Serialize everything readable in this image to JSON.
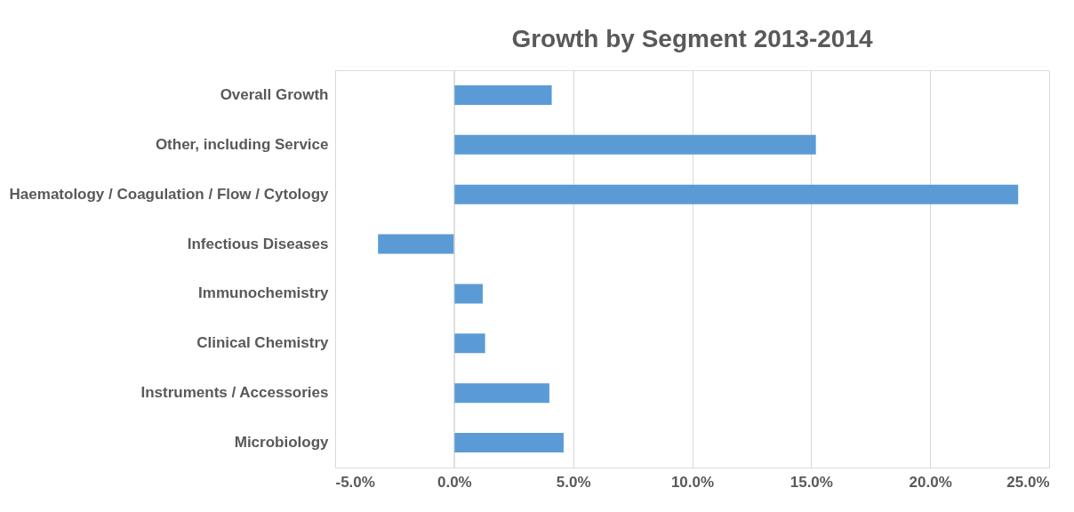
{
  "chart_data": {
    "type": "bar",
    "orientation": "horizontal",
    "title": "Growth by Segment 2013-2014",
    "categories": [
      "Overall Growth",
      "Other, including Service",
      "Haematology / Coagulation / Flow / Cytology",
      "Infectious Diseases",
      "Immunochemistry",
      "Clinical Chemistry",
      "Instruments / Accessories",
      "Microbiology"
    ],
    "values": [
      4.1,
      15.2,
      23.7,
      -3.2,
      1.2,
      1.3,
      4.0,
      4.6
    ],
    "color": "#5b9bd5",
    "xlim": [
      -5,
      25
    ],
    "xticks": [
      {
        "value": -5,
        "label": "-5.0%"
      },
      {
        "value": 0,
        "label": "0.0%"
      },
      {
        "value": 5,
        "label": "5.0%"
      },
      {
        "value": 10,
        "label": "10.0%"
      },
      {
        "value": 15,
        "label": "15.0%"
      },
      {
        "value": 20,
        "label": "20.0%"
      },
      {
        "value": 25,
        "label": "25.0%"
      }
    ],
    "grid": "x"
  }
}
